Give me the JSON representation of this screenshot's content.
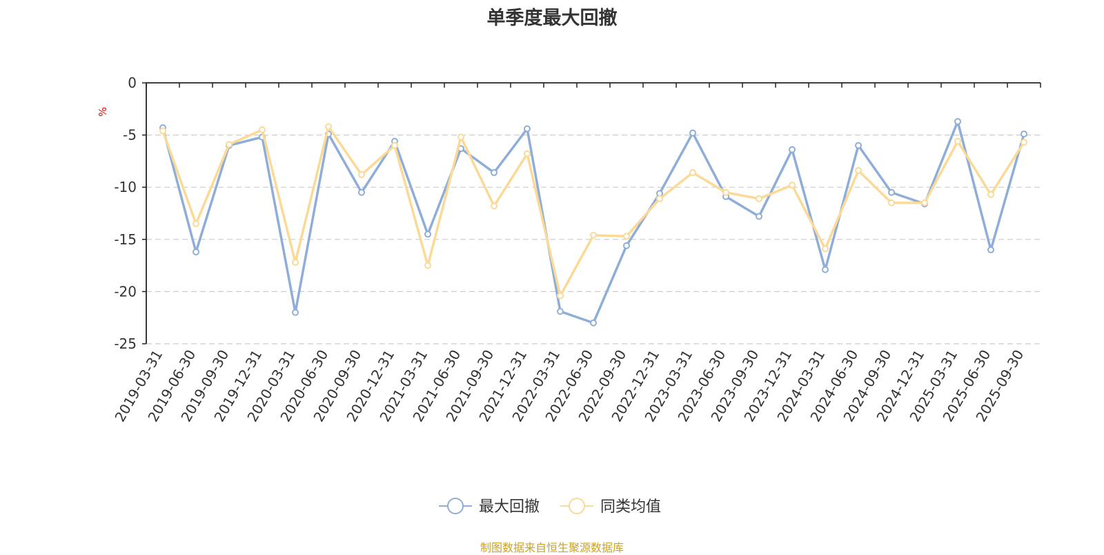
{
  "chart_data": {
    "type": "line",
    "title": "单季度最大回撤",
    "ylabel": "%",
    "xlabel": "",
    "ylim": [
      -25,
      0
    ],
    "yticks": [
      0,
      -5,
      -10,
      -15,
      -20,
      -25
    ],
    "grid": true,
    "legend_position": "bottom-center",
    "categories": [
      "2019-03-31",
      "2019-06-30",
      "2019-09-30",
      "2019-12-31",
      "2020-03-31",
      "2020-06-30",
      "2020-09-30",
      "2020-12-31",
      "2021-03-31",
      "2021-06-30",
      "2021-09-30",
      "2021-12-31",
      "2022-03-31",
      "2022-06-30",
      "2022-09-30",
      "2022-12-31",
      "2023-03-31",
      "2023-06-30",
      "2023-09-30",
      "2023-12-31",
      "2024-03-31",
      "2024-06-30",
      "2024-09-30",
      "2024-12-31",
      "2025-03-31",
      "2025-06-30",
      "2025-09-30"
    ],
    "series": [
      {
        "name": "最大回撤",
        "color": "#8eadd9",
        "values": [
          -4.3,
          -16.2,
          -6.0,
          -5.2,
          -22.0,
          -4.9,
          -10.5,
          -5.6,
          -14.5,
          -6.3,
          -8.6,
          -4.4,
          -21.9,
          -23.0,
          -15.6,
          -10.6,
          -4.8,
          -10.9,
          -12.8,
          -6.4,
          -17.9,
          -6.0,
          -10.5,
          -11.6,
          -3.7,
          -16.0,
          -4.9
        ]
      },
      {
        "name": "同类均值",
        "color": "#fbd996",
        "values": [
          -4.6,
          -13.5,
          -5.9,
          -4.5,
          -17.2,
          -4.2,
          -8.8,
          -6.0,
          -17.5,
          -5.2,
          -11.8,
          -6.8,
          -20.4,
          -14.6,
          -14.7,
          -11.1,
          -8.6,
          -10.5,
          -11.1,
          -9.8,
          -15.9,
          -8.4,
          -11.5,
          -11.5,
          -5.6,
          -10.7,
          -5.7
        ]
      }
    ]
  },
  "footer": {
    "text": "制图数据来自恒生聚源数据库",
    "color": "#c9a227"
  },
  "styles": {
    "ylabel_color": "#ff0000",
    "axis_color": "#222222",
    "grid_color": "#cccccc"
  }
}
